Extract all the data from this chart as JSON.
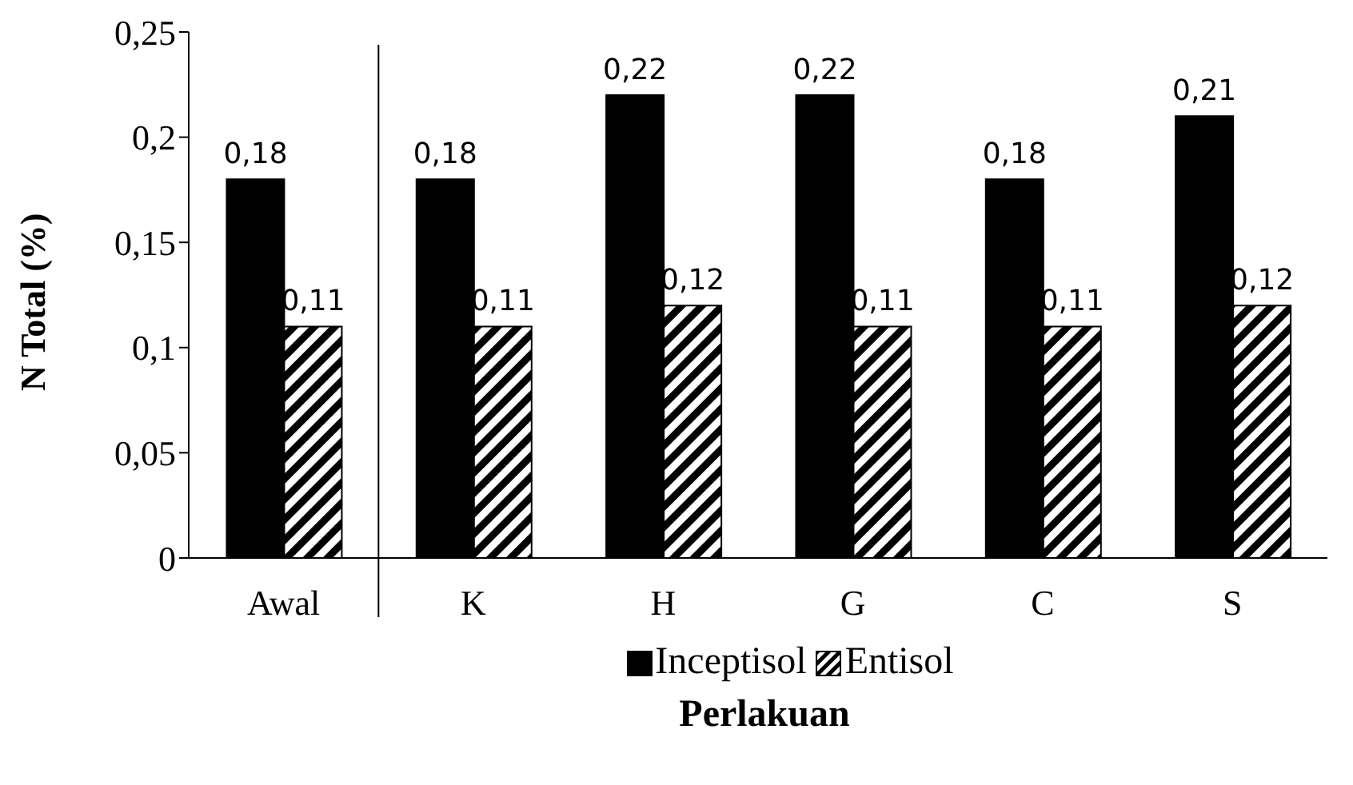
{
  "chart_data": {
    "type": "bar",
    "xlabel": "Perlakuan",
    "ylabel": "N Total  (%)",
    "categories": [
      "Awal",
      "K",
      "H",
      "G",
      "C",
      "S"
    ],
    "series": [
      {
        "name": "Inceptisol",
        "color": "#000000",
        "values": [
          0.18,
          0.18,
          0.22,
          0.22,
          0.18,
          0.21
        ],
        "value_labels": [
          "0,18",
          "0,18",
          "0,22",
          "0,22",
          "0,18",
          "0,21"
        ]
      },
      {
        "name": "Entisol",
        "color": "#000000",
        "values": [
          0.11,
          0.11,
          0.12,
          0.11,
          0.11,
          0.12
        ],
        "value_labels": [
          "0,11",
          "0,11",
          "0,12",
          "0,11",
          "0,11",
          "0,12"
        ]
      }
    ],
    "ylim": [
      0,
      0.25
    ],
    "yticks": [
      {
        "value": 0,
        "label": "0"
      },
      {
        "value": 0.05,
        "label": "0,05"
      },
      {
        "value": 0.1,
        "label": "0,1"
      },
      {
        "value": 0.15,
        "label": "0,15"
      },
      {
        "value": 0.2,
        "label": "0,2"
      },
      {
        "value": 0.25,
        "label": "0,25"
      }
    ],
    "grid": false,
    "legend": "bottom"
  }
}
